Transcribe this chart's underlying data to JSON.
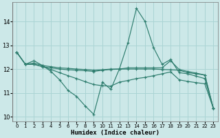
{
  "background_color": "#cce8e8",
  "grid_color": "#aad4d4",
  "line_color": "#2e7d6e",
  "xlabel": "Humidex (Indice chaleur)",
  "xlim": [
    -0.5,
    23.5
  ],
  "ylim": [
    9.8,
    14.8
  ],
  "yticks": [
    10,
    11,
    12,
    13,
    14
  ],
  "xticks": [
    0,
    1,
    2,
    3,
    4,
    5,
    6,
    7,
    8,
    9,
    10,
    11,
    12,
    13,
    14,
    15,
    16,
    17,
    18,
    19,
    20,
    21,
    22,
    23
  ],
  "series": [
    {
      "x": [
        0,
        1,
        2,
        3,
        4,
        5,
        6,
        7,
        8,
        9,
        10,
        11,
        12,
        13,
        14,
        15,
        16,
        17,
        18,
        19,
        20,
        21,
        22,
        23
      ],
      "y": [
        12.7,
        12.2,
        12.35,
        12.15,
        11.9,
        11.55,
        11.1,
        10.85,
        10.45,
        10.1,
        11.45,
        11.15,
        12.0,
        13.1,
        14.55,
        14.0,
        12.9,
        12.2,
        12.4,
        11.85,
        11.8,
        11.7,
        11.6,
        10.35
      ]
    },
    {
      "x": [
        0,
        1,
        2,
        3,
        4,
        5,
        6,
        7,
        8,
        9,
        10,
        11,
        12,
        13,
        14,
        15,
        16,
        17,
        18,
        19,
        20,
        21,
        22,
        23
      ],
      "y": [
        12.7,
        12.2,
        12.2,
        12.1,
        12.05,
        12.0,
        11.97,
        11.95,
        11.93,
        11.9,
        11.95,
        11.98,
        12.0,
        12.0,
        12.0,
        12.0,
        12.0,
        11.98,
        11.97,
        11.95,
        11.85,
        11.8,
        11.75,
        10.35
      ]
    },
    {
      "x": [
        0,
        1,
        2,
        3,
        4,
        5,
        6,
        7,
        8,
        9,
        10,
        11,
        12,
        13,
        14,
        15,
        16,
        17,
        18,
        19,
        20,
        21,
        22,
        23
      ],
      "y": [
        12.7,
        12.2,
        12.25,
        12.15,
        12.1,
        12.05,
        12.03,
        12.0,
        11.98,
        11.95,
        11.97,
        12.0,
        12.0,
        12.05,
        12.05,
        12.05,
        12.05,
        12.05,
        12.35,
        11.98,
        11.9,
        11.83,
        11.75,
        10.35
      ]
    },
    {
      "x": [
        0,
        1,
        2,
        3,
        4,
        5,
        6,
        7,
        8,
        9,
        10,
        11,
        12,
        13,
        14,
        15,
        16,
        17,
        18,
        19,
        20,
        21,
        22,
        23
      ],
      "y": [
        12.7,
        12.2,
        12.2,
        12.1,
        11.98,
        11.85,
        11.72,
        11.6,
        11.47,
        11.35,
        11.3,
        11.28,
        11.45,
        11.52,
        11.6,
        11.65,
        11.72,
        11.8,
        11.88,
        11.55,
        11.48,
        11.43,
        11.38,
        10.35
      ]
    }
  ]
}
